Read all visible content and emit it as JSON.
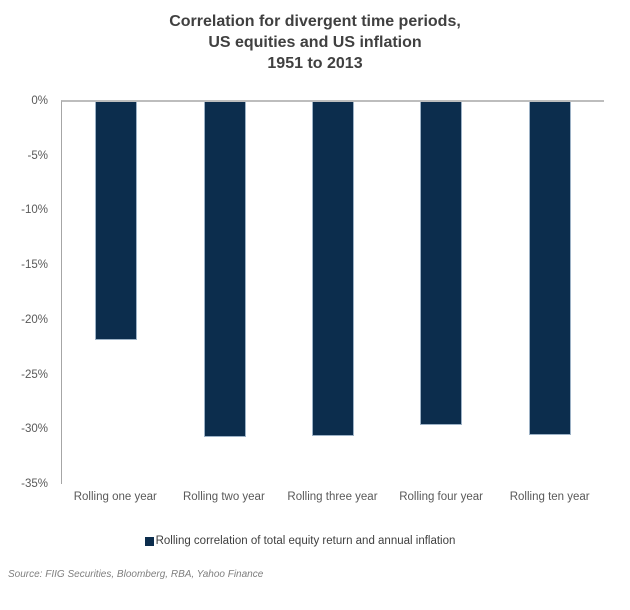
{
  "title": {
    "lines": [
      "Correlation for divergent time periods,",
      "US equities and US inflation",
      "1951 to 2013"
    ]
  },
  "chart_data": {
    "type": "bar",
    "title": "Correlation for divergent time periods, US equities and US inflation, 1951 to 2013",
    "categories": [
      "Rolling one year",
      "Rolling two year",
      "Rolling three year",
      "Rolling four year",
      "Rolling ten year"
    ],
    "values": [
      -21.8,
      -30.7,
      -30.6,
      -29.6,
      -30.5
    ],
    "unit": "%",
    "xlabel": "",
    "ylabel": "",
    "ylim": [
      -35,
      0
    ],
    "yticks": [
      "0%",
      "-5%",
      "-10%",
      "-15%",
      "-20%",
      "-25%",
      "-30%",
      "-35%"
    ],
    "grid": false,
    "legend_position": "bottom",
    "series_name": "Rolling correlation of total equity return and annual inflation",
    "bar_color": "#0c2d4d",
    "bar_border_color": "#9db2c6"
  },
  "legend": {
    "label": "Rolling correlation of total equity return and annual inflation"
  },
  "source": "Source: FIIG Securities, Bloomberg, RBA, Yahoo Finance",
  "colors": {
    "bar_fill": "#0c2d4d",
    "title_text": "#404040",
    "axis_text": "#595959",
    "axis_line": "#a6a6a6",
    "zero_line": "#bdbdbd",
    "source_text": "#7f7f7f"
  }
}
